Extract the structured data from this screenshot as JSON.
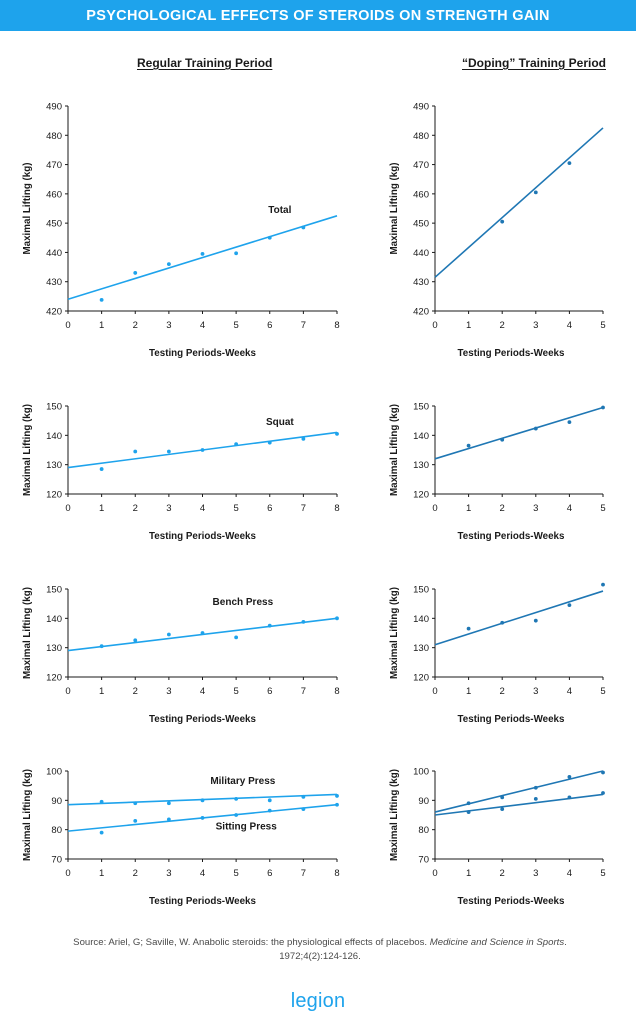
{
  "header": {
    "title": "PSYCHOLOGICAL EFFECTS OF STEROIDS ON STRENGTH GAIN"
  },
  "columns": {
    "left": "Regular Training Period",
    "right": "“Doping” Training Period"
  },
  "source": {
    "prefix": "Source: Ariel, G; Saville, W. Anabolic steroids: the physiological effects of placebos. ",
    "journal": "Medicine and Science in Sports",
    "suffix": ". 1972;4(2):124-126."
  },
  "logo": {
    "text": "legion"
  },
  "colors": {
    "regular": "#1ea3ec",
    "doping": "#1f77b4",
    "banner": "#1ea3ec",
    "axis": "#1a1a1a"
  },
  "chart_data": [
    {
      "type": "scatter",
      "column": "regular",
      "ylabel": "Maximal Lifting (kg)",
      "xlabel": "Testing Periods-Weeks",
      "xlim": [
        0,
        8
      ],
      "ylim": [
        420,
        490
      ],
      "xticks": [
        0,
        1,
        2,
        3,
        4,
        5,
        6,
        7,
        8
      ],
      "yticks": [
        420,
        430,
        440,
        450,
        460,
        470,
        480,
        490
      ],
      "series": [
        {
          "name": "Total",
          "points": [
            [
              1,
              423.8
            ],
            [
              2,
              433
            ],
            [
              3,
              436
            ],
            [
              4,
              439.5
            ],
            [
              5,
              439.7
            ],
            [
              6,
              445
            ],
            [
              7,
              448.5
            ]
          ],
          "fit": [
            [
              0,
              424
            ],
            [
              8,
              452.5
            ]
          ]
        }
      ]
    },
    {
      "type": "scatter",
      "column": "doping",
      "ylabel": "Maximal Lifting (kg)",
      "xlabel": "Testing Periods-Weeks",
      "xlim": [
        0,
        5
      ],
      "ylim": [
        420,
        490
      ],
      "xticks": [
        0,
        1,
        2,
        3,
        4,
        5
      ],
      "yticks": [
        420,
        430,
        440,
        450,
        460,
        470,
        480,
        490
      ],
      "series": [
        {
          "name": "",
          "points": [
            [
              2,
              450.5
            ],
            [
              3,
              460.5
            ],
            [
              4,
              470.5
            ]
          ],
          "fit": [
            [
              0,
              431.5
            ],
            [
              5,
              482.5
            ]
          ]
        }
      ]
    },
    {
      "type": "scatter",
      "column": "regular",
      "ylabel": "Maximal Lifting (kg)",
      "xlabel": "Testing Periods-Weeks",
      "xlim": [
        0,
        8
      ],
      "ylim": [
        120,
        150
      ],
      "xticks": [
        0,
        1,
        2,
        3,
        4,
        5,
        6,
        7,
        8
      ],
      "yticks": [
        120,
        130,
        140,
        150
      ],
      "series": [
        {
          "name": "Squat",
          "points": [
            [
              1,
              128.5
            ],
            [
              2,
              134.5
            ],
            [
              3,
              134.5
            ],
            [
              4,
              135
            ],
            [
              5,
              137
            ],
            [
              6,
              137.5
            ],
            [
              7,
              138.8
            ],
            [
              8,
              140.5
            ]
          ],
          "fit": [
            [
              0,
              129
            ],
            [
              8,
              141
            ]
          ]
        }
      ]
    },
    {
      "type": "scatter",
      "column": "doping",
      "ylabel": "Maximal Lifting (kg)",
      "xlabel": "Testing Periods-Weeks",
      "xlim": [
        0,
        5
      ],
      "ylim": [
        120,
        150
      ],
      "xticks": [
        0,
        1,
        2,
        3,
        4,
        5
      ],
      "yticks": [
        120,
        130,
        140,
        150
      ],
      "series": [
        {
          "name": "",
          "points": [
            [
              1,
              136.5
            ],
            [
              2,
              138.5
            ],
            [
              3,
              142.3
            ],
            [
              4,
              144.5
            ],
            [
              5,
              149.5
            ]
          ],
          "fit": [
            [
              0,
              132
            ],
            [
              5,
              149.5
            ]
          ]
        }
      ]
    },
    {
      "type": "scatter",
      "column": "regular",
      "ylabel": "Maximal Lifting (kg)",
      "xlabel": "Testing Periods-Weeks",
      "xlim": [
        0,
        8
      ],
      "ylim": [
        120,
        150
      ],
      "xticks": [
        0,
        1,
        2,
        3,
        4,
        5,
        6,
        7,
        8
      ],
      "yticks": [
        120,
        130,
        140,
        150
      ],
      "series": [
        {
          "name": "Bench Press",
          "points": [
            [
              1,
              130.5
            ],
            [
              2,
              132.5
            ],
            [
              3,
              134.5
            ],
            [
              4,
              135
            ],
            [
              5,
              133.5
            ],
            [
              6,
              137.5
            ],
            [
              7,
              138.8
            ],
            [
              8,
              140
            ]
          ],
          "fit": [
            [
              0,
              129
            ],
            [
              8,
              140
            ]
          ]
        }
      ]
    },
    {
      "type": "scatter",
      "column": "doping",
      "ylabel": "Maximal Lifting (kg)",
      "xlabel": "Testing Periods-Weeks",
      "xlim": [
        0,
        5
      ],
      "ylim": [
        120,
        150
      ],
      "xticks": [
        0,
        1,
        2,
        3,
        4,
        5
      ],
      "yticks": [
        120,
        130,
        140,
        150
      ],
      "series": [
        {
          "name": "",
          "points": [
            [
              1,
              136.5
            ],
            [
              2,
              138.5
            ],
            [
              3,
              139.2
            ],
            [
              4,
              144.5
            ],
            [
              5,
              151.5
            ]
          ],
          "fit": [
            [
              0,
              131
            ],
            [
              5,
              149.3
            ]
          ]
        }
      ]
    },
    {
      "type": "scatter",
      "column": "regular",
      "ylabel": "Maximal Lifting (kg)",
      "xlabel": "Testing Periods-Weeks",
      "xlim": [
        0,
        8
      ],
      "ylim": [
        70,
        100
      ],
      "xticks": [
        0,
        1,
        2,
        3,
        4,
        5,
        6,
        7,
        8
      ],
      "yticks": [
        70,
        80,
        90,
        100
      ],
      "series": [
        {
          "name": "Military Press",
          "points": [
            [
              1,
              89.5
            ],
            [
              2,
              89
            ],
            [
              3,
              89
            ],
            [
              4,
              90
            ],
            [
              5,
              90.5
            ],
            [
              6,
              90
            ],
            [
              7,
              91.2
            ],
            [
              8,
              91.5
            ]
          ],
          "fit": [
            [
              0,
              88.5
            ],
            [
              8,
              92
            ]
          ]
        },
        {
          "name": "Sitting Press",
          "points": [
            [
              1,
              79
            ],
            [
              2,
              83
            ],
            [
              3,
              83.5
            ],
            [
              4,
              84
            ],
            [
              5,
              85
            ],
            [
              6,
              86.5
            ],
            [
              7,
              87
            ],
            [
              8,
              88.5
            ]
          ],
          "fit": [
            [
              0,
              79.5
            ],
            [
              8,
              88.5
            ]
          ]
        }
      ]
    },
    {
      "type": "scatter",
      "column": "doping",
      "ylabel": "Maximal Lifting (kg)",
      "xlabel": "Testing Periods-Weeks",
      "xlim": [
        0,
        5
      ],
      "ylim": [
        70,
        100
      ],
      "xticks": [
        0,
        1,
        2,
        3,
        4,
        5
      ],
      "yticks": [
        70,
        80,
        90,
        100
      ],
      "series": [
        {
          "name": "",
          "points": [
            [
              1,
              89
            ],
            [
              2,
              91
            ],
            [
              3,
              94.3
            ],
            [
              4,
              98
            ],
            [
              5,
              99.5
            ]
          ],
          "fit": [
            [
              0,
              86
            ],
            [
              5,
              100
            ]
          ]
        },
        {
          "name": "",
          "points": [
            [
              1,
              86
            ],
            [
              2,
              87
            ],
            [
              3,
              90.5
            ],
            [
              4,
              91
            ],
            [
              5,
              92.5
            ]
          ],
          "fit": [
            [
              0,
              85
            ],
            [
              5,
              92
            ]
          ]
        }
      ]
    }
  ]
}
